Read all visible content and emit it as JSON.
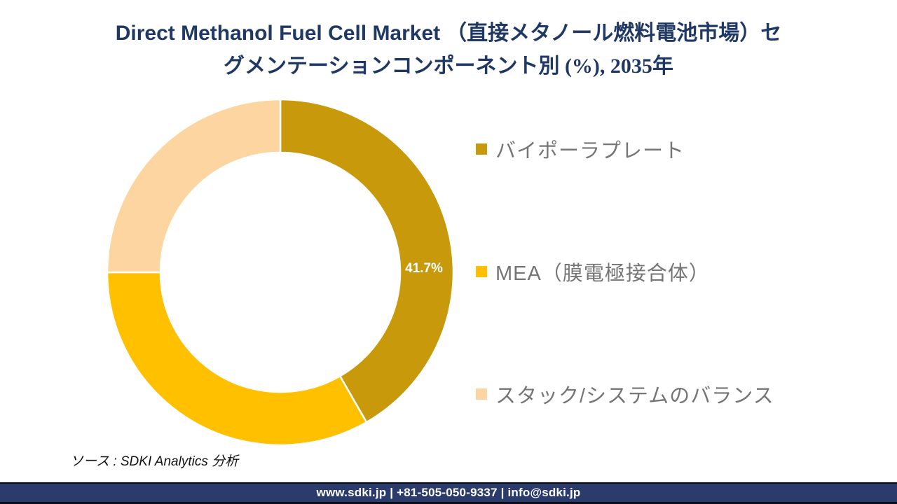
{
  "title": {
    "line1_en": "Direct Methanol Fuel Cell Market",
    "line1_jp": "（直接メタノール燃料電池市場）セ",
    "line2": "グメンテーションコンポーネント別 (%), 2035年"
  },
  "chart_data": {
    "type": "pie",
    "subtype": "donut",
    "title": "Direct Methanol Fuel Cell Market （直接メタノール燃料電池市場）セグメンテーションコンポーネント別 (%), 2035年",
    "unit": "%",
    "categories": [
      "バイポーラプレート",
      "MEA（膜電極接合体）",
      "スタック/システムのバランス"
    ],
    "values": [
      41.7,
      33.3,
      25.0
    ],
    "segments": [
      {
        "label": "バイポーラプレート",
        "value": 41.7,
        "color": "#C7990B",
        "data_label": "41.7%"
      },
      {
        "label": "MEA（膜電極接合体）",
        "value": 33.3,
        "color": "#FFC000",
        "data_label": ""
      },
      {
        "label": "スタック/システムのバランス",
        "value": 25.0,
        "color": "#FCD5A0",
        "data_label": ""
      }
    ],
    "start_angle_deg": 0,
    "direction": "clockwise",
    "inner_radius_ratio": 0.692,
    "slice_border_color": "#FFFFFF",
    "legend_position": "right",
    "visible_data_labels": [
      "41.7%"
    ]
  },
  "source": "ソース : SDKI Analytics 分析",
  "footer": {
    "text": "www.sdki.jp | +81-505-050-9337 | info@sdki.jp"
  },
  "colors": {
    "title_text": "#203864",
    "legend_text": "#757575",
    "data_label_text": "#FFFFFF",
    "footer_bg": "#2B3B6B",
    "background": "#FFFFFF"
  }
}
